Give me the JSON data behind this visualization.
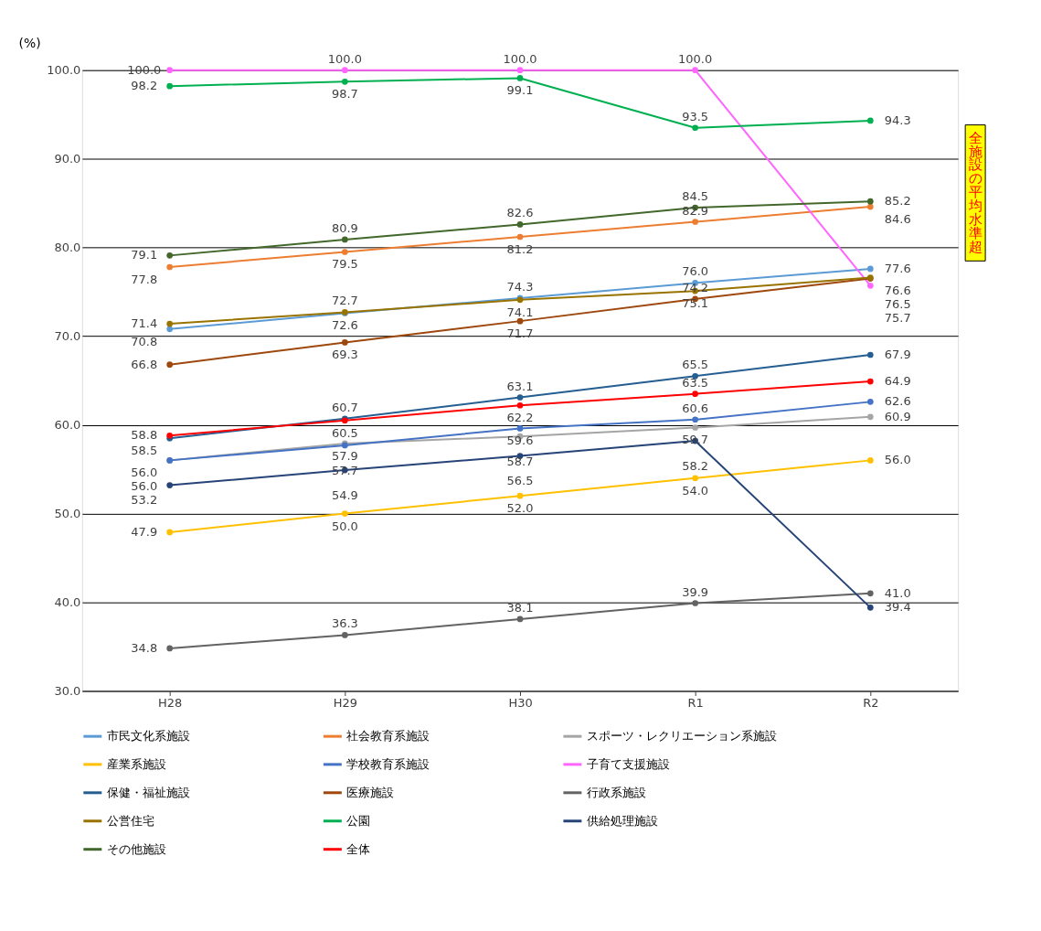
{
  "chart_data": {
    "type": "line",
    "ylabel": "(%)",
    "categories": [
      "H28",
      "H29",
      "H30",
      "R1",
      "R2"
    ],
    "ylim": [
      30,
      100
    ],
    "yticks": [
      {
        "value": 30,
        "label": "30.0"
      },
      {
        "value": 40,
        "label": "40.0"
      },
      {
        "value": 50,
        "label": "50.0"
      },
      {
        "value": 60,
        "label": "60.0"
      },
      {
        "value": 70,
        "label": "70.0"
      },
      {
        "value": 80,
        "label": "80.0"
      },
      {
        "value": 90,
        "label": "90.0"
      },
      {
        "value": 100,
        "label": "100.0"
      }
    ],
    "grid": "y",
    "legend": "bottom",
    "marker": "circle",
    "line_style": "solid",
    "annotations": [
      "全施設の平均水準超"
    ],
    "series": [
      {
        "name": "市民文化系施設",
        "color": "#5b9bd5",
        "values": [
          70.8,
          72.6,
          74.3,
          76.0,
          77.6
        ],
        "value_labels": [
          "70.8",
          "72.6",
          "74.3",
          "76.0",
          "77.6"
        ]
      },
      {
        "name": "社会教育系施設",
        "color": "#ed7d31",
        "values": [
          77.8,
          79.5,
          81.2,
          82.9,
          84.6
        ],
        "value_labels": [
          "77.8",
          "79.5",
          "81.2",
          "82.9",
          "84.6"
        ]
      },
      {
        "name": "スポーツ・レクリエーション系施設",
        "color": "#a5a5a5",
        "values": [
          56.0,
          57.9,
          58.7,
          59.7,
          60.9
        ],
        "value_labels": [
          "56.0",
          "57.9",
          "58.7",
          "59.7",
          "60.9"
        ]
      },
      {
        "name": "産業系施設",
        "color": "#ffc000",
        "values": [
          47.9,
          50.0,
          52.0,
          54.0,
          56.0
        ],
        "value_labels": [
          "47.9",
          "50.0",
          "52.0",
          "54.0",
          "56.0"
        ]
      },
      {
        "name": "学校教育系施設",
        "color": "#4472c4",
        "values": [
          56.0,
          57.7,
          59.6,
          60.6,
          62.6
        ],
        "value_labels": [
          "56.0",
          "57.7",
          "59.6",
          "60.6",
          "62.6"
        ]
      },
      {
        "name": "子育て支援施設",
        "color": "#ff66ff",
        "values": [
          100.0,
          100.0,
          100.0,
          100.0,
          75.7
        ],
        "value_labels": [
          "100.0",
          "100.0",
          "100.0",
          "100.0",
          "75.7"
        ]
      },
      {
        "name": "保健・福祉施設",
        "color": "#255e91",
        "values": [
          58.5,
          60.7,
          63.1,
          65.5,
          67.9
        ],
        "value_labels": [
          "58.5",
          "60.7",
          "63.1",
          "65.5",
          "67.9"
        ]
      },
      {
        "name": "医療施設",
        "color": "#9e480e",
        "values": [
          66.8,
          69.3,
          71.7,
          74.2,
          76.5
        ],
        "value_labels": [
          "66.8",
          "69.3",
          "71.7",
          "74.2",
          "76.5"
        ]
      },
      {
        "name": "行政系施設",
        "color": "#636363",
        "values": [
          34.8,
          36.3,
          38.1,
          39.9,
          41.0
        ],
        "value_labels": [
          "34.8",
          "36.3",
          "38.1",
          "39.9",
          "41.0"
        ]
      },
      {
        "name": "公営住宅",
        "color": "#997300",
        "values": [
          71.4,
          72.7,
          74.1,
          75.1,
          76.6
        ],
        "value_labels": [
          "71.4",
          "72.7",
          "74.1",
          "75.1",
          "76.6"
        ]
      },
      {
        "name": "公園",
        "color": "#00b050",
        "values": [
          98.2,
          98.7,
          99.1,
          93.5,
          94.3
        ],
        "value_labels": [
          "98.2",
          "98.7",
          "99.1",
          "93.5",
          "94.3"
        ]
      },
      {
        "name": "供給処理施設",
        "color": "#264478",
        "values": [
          53.2,
          54.9,
          56.5,
          58.2,
          39.4
        ],
        "value_labels": [
          "53.2",
          "54.9",
          "56.5",
          "58.2",
          "39.4"
        ]
      },
      {
        "name": "その他施設",
        "color": "#43682b",
        "values": [
          79.1,
          80.9,
          82.6,
          84.5,
          85.2
        ],
        "value_labels": [
          "79.1",
          "80.9",
          "82.6",
          "84.5",
          "85.2"
        ]
      },
      {
        "name": "全体",
        "color": "#ff0000",
        "values": [
          58.8,
          60.5,
          62.2,
          63.5,
          64.9
        ],
        "value_labels": [
          "58.8",
          "60.5",
          "62.2",
          "63.5",
          "64.9"
        ]
      }
    ]
  }
}
